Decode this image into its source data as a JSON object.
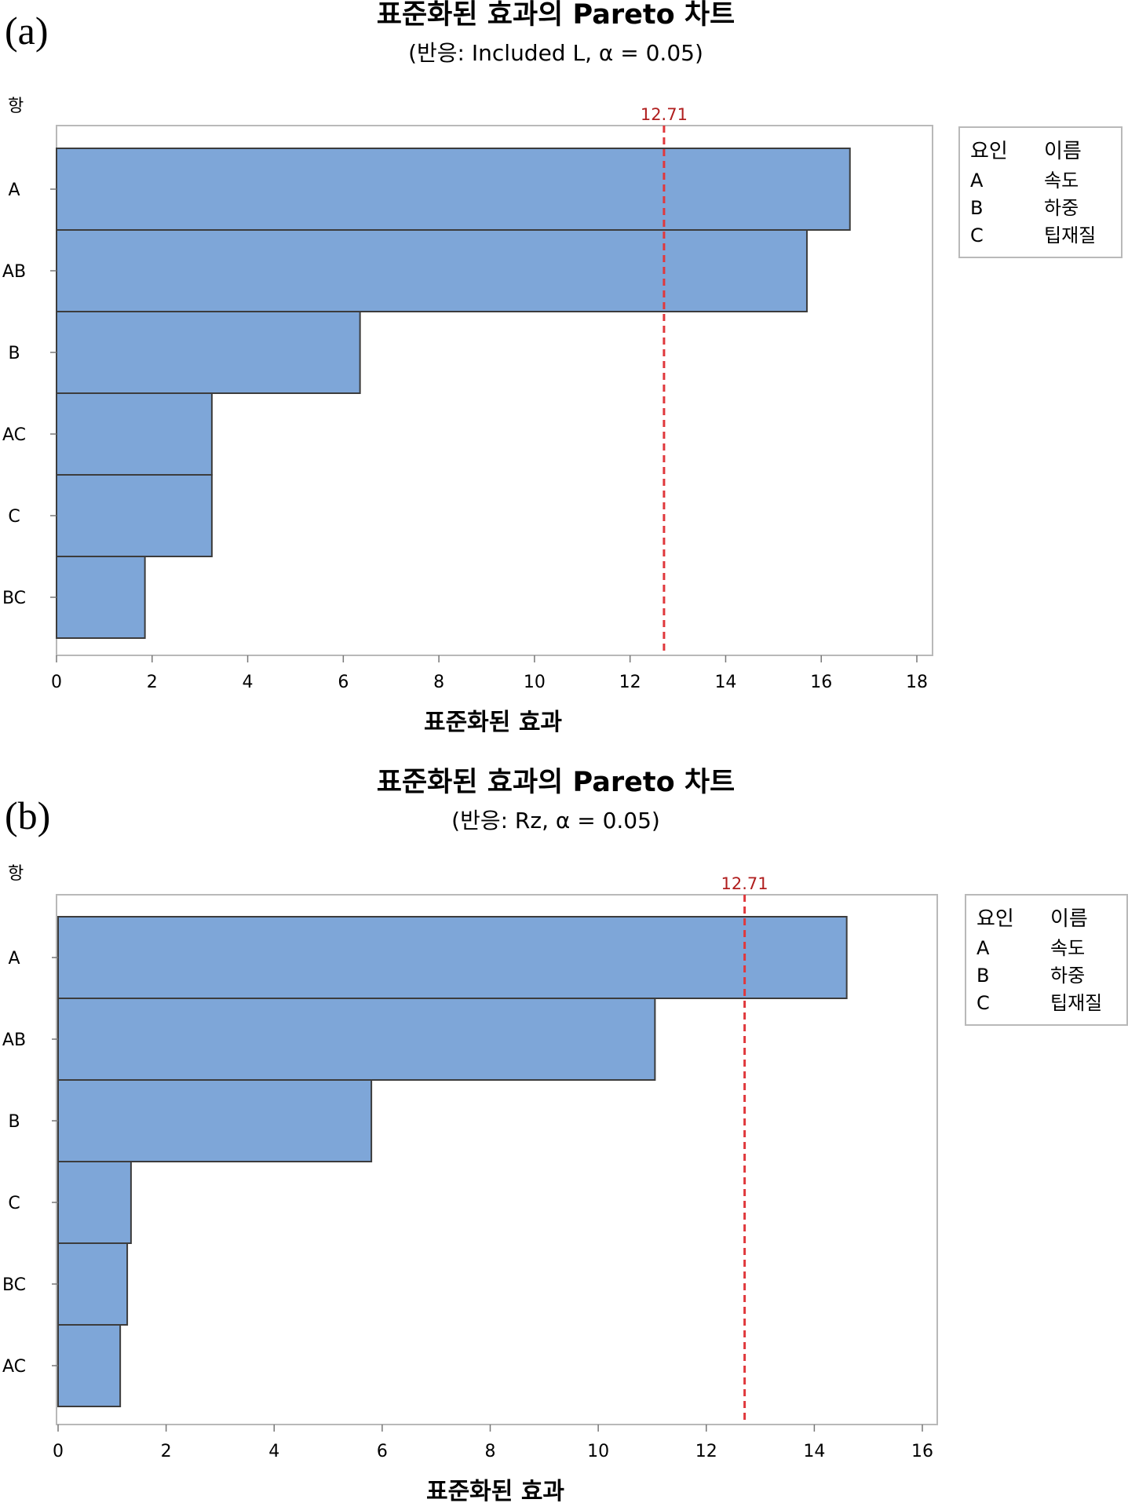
{
  "chart_data": [
    {
      "type": "bar",
      "orientation": "horizontal",
      "panel_label": "(a)",
      "title": "표준화된 효과의 Pareto 차트",
      "subtitle": "(반응: Included L, α = 0.05)",
      "xlabel": "표준화된 효과",
      "ylabel": "항",
      "categories": [
        "A",
        "AB",
        "B",
        "AC",
        "C",
        "BC"
      ],
      "values": [
        16.6,
        15.7,
        6.35,
        3.25,
        3.25,
        1.85
      ],
      "xlim": [
        0,
        18
      ],
      "xticks": [
        0,
        2,
        4,
        6,
        8,
        10,
        12,
        14,
        16,
        18
      ],
      "reference_line": {
        "value": 12.71,
        "label": "12.71"
      },
      "bar_color": "#7ea6d8",
      "reference_color": "#e0383c",
      "legend": {
        "placement": "right",
        "header": [
          "요인",
          "이름"
        ],
        "rows": [
          [
            "A",
            "속도"
          ],
          [
            "B",
            "하중"
          ],
          [
            "C",
            "팁재질"
          ]
        ]
      }
    },
    {
      "type": "bar",
      "orientation": "horizontal",
      "panel_label": "(b)",
      "title": "표준화된 효과의 Pareto 차트",
      "subtitle": "(반응: Rz, α = 0.05)",
      "xlabel": "표준화된 효과",
      "ylabel": "항",
      "categories": [
        "A",
        "AB",
        "B",
        "C",
        "BC",
        "AC"
      ],
      "values": [
        14.6,
        11.05,
        5.8,
        1.35,
        1.28,
        1.15
      ],
      "xlim": [
        0,
        16
      ],
      "xticks": [
        0,
        2,
        4,
        6,
        8,
        10,
        12,
        14,
        16
      ],
      "reference_line": {
        "value": 12.71,
        "label": "12.71"
      },
      "bar_color": "#7ea6d8",
      "reference_color": "#e0383c",
      "legend": {
        "placement": "right",
        "header": [
          "요인",
          "이름"
        ],
        "rows": [
          [
            "A",
            "속도"
          ],
          [
            "B",
            "하중"
          ],
          [
            "C",
            "팁재질"
          ]
        ]
      }
    }
  ]
}
